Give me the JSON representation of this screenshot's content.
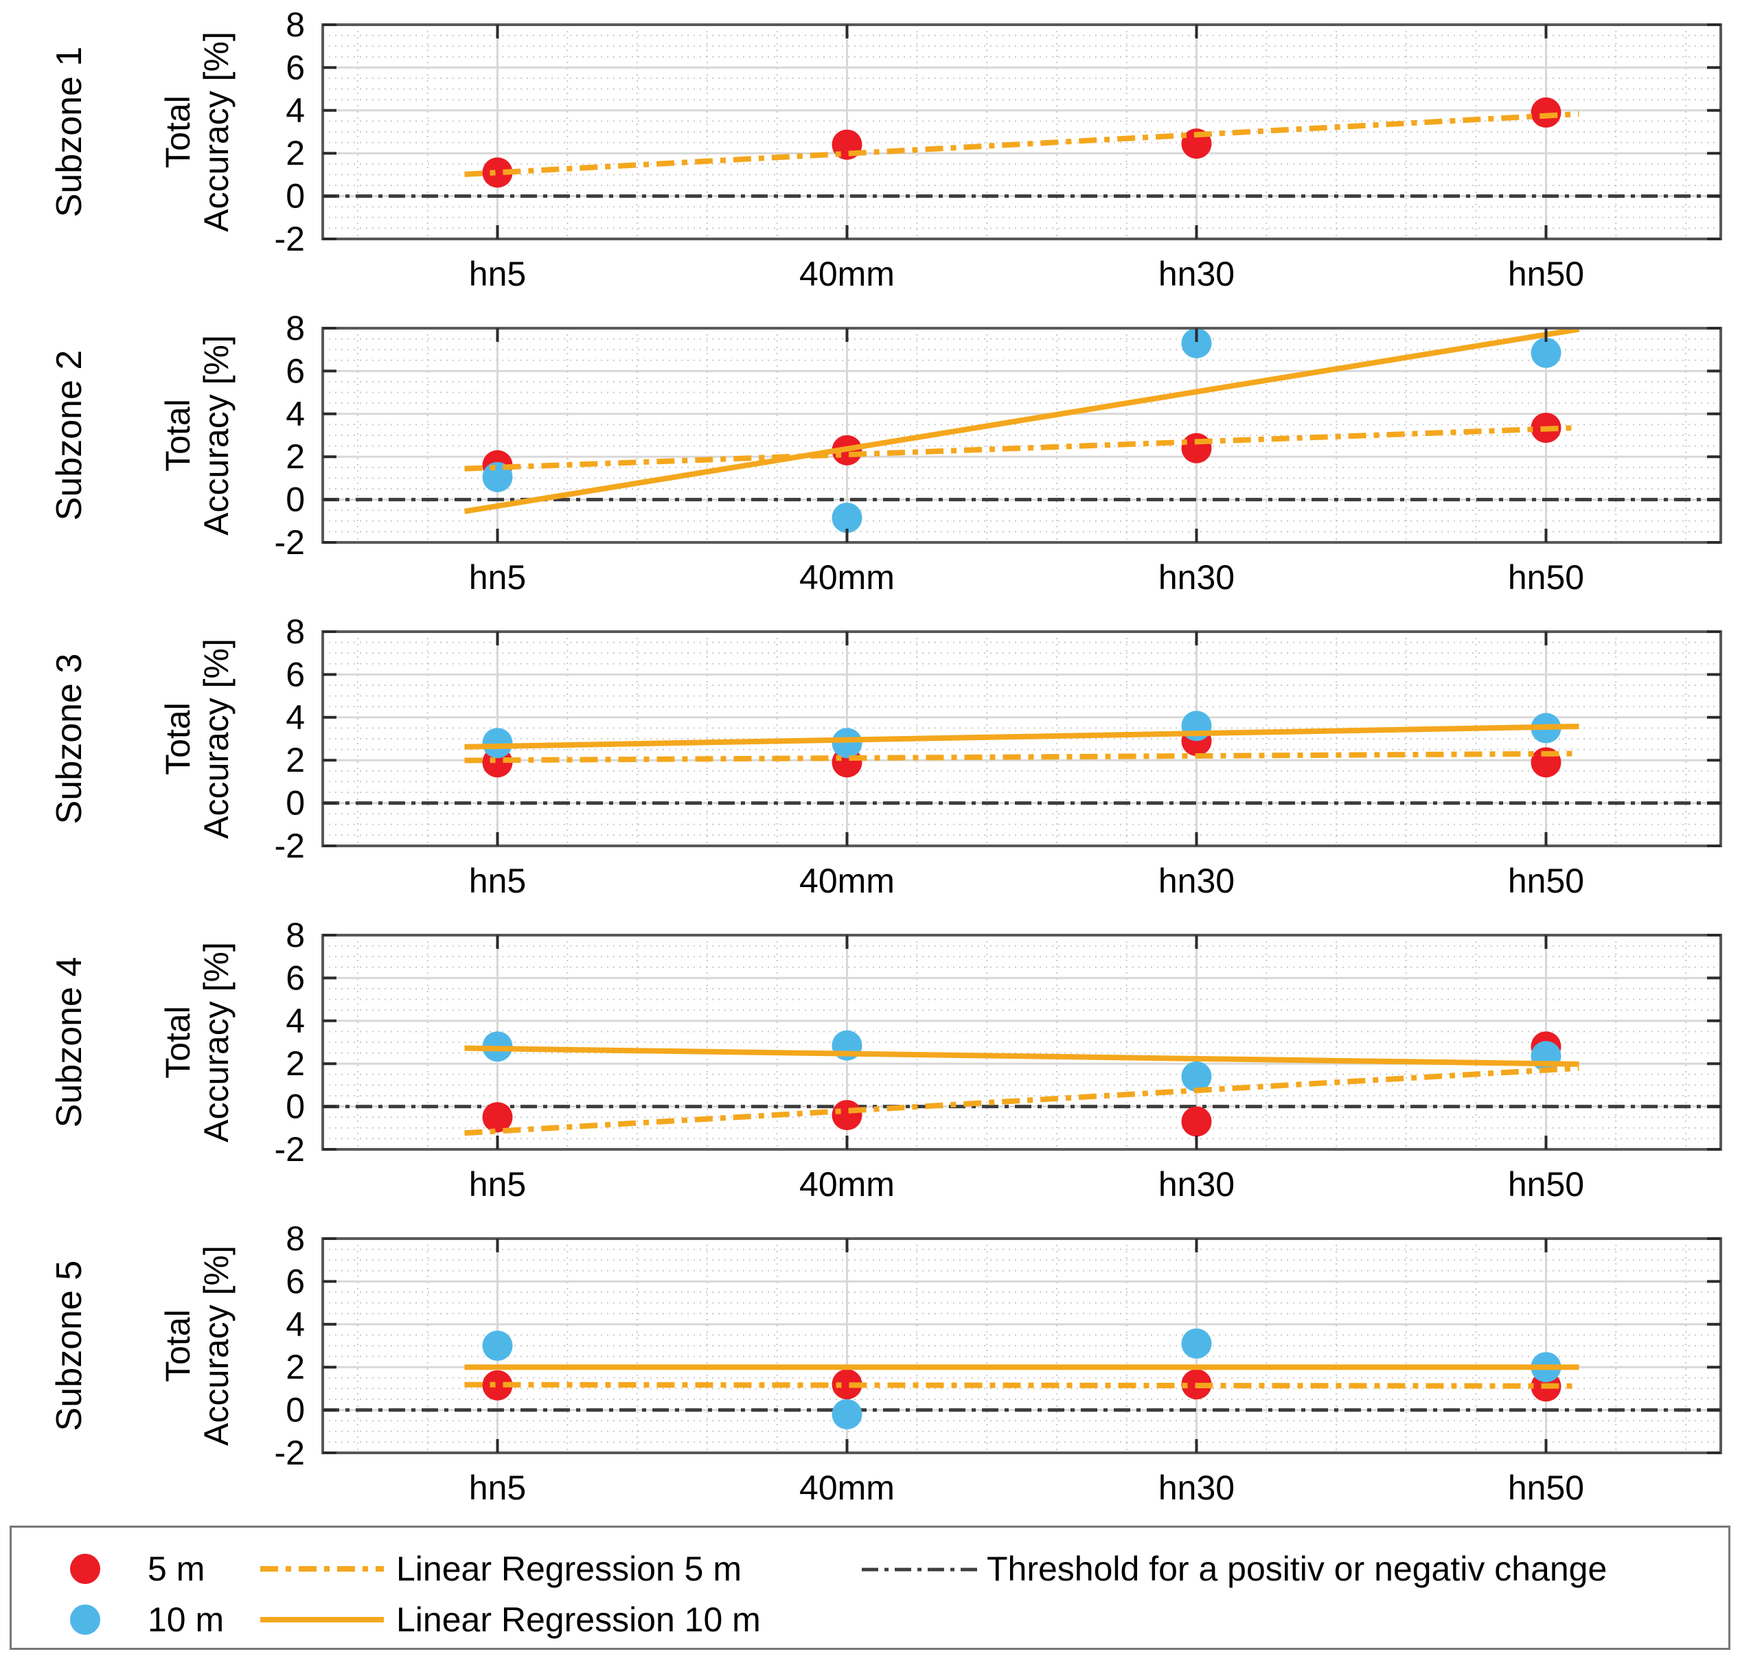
{
  "figure": {
    "ylabel_line1": "Total",
    "ylabel_line2": "Accuracy [%]",
    "ylabel": "Total Accuracy [%]",
    "ylim": [
      -2,
      8
    ],
    "yticks": [
      8,
      6,
      4,
      2,
      0,
      -2
    ],
    "ytick_labels": [
      "8",
      "6",
      "4",
      "2",
      "0",
      "-2"
    ],
    "categories": [
      "hn5",
      "40mm",
      "hn30",
      "hn50"
    ]
  },
  "colors": {
    "red": "#eb1c24",
    "blue": "#4fb7e8",
    "orange": "#f4a71d",
    "threshold": "#3d3d3d"
  },
  "chart_data": [
    {
      "type": "scatter",
      "title": "Subzone 1",
      "ylabel": "Total Accuracy [%]",
      "categories": [
        "hn5",
        "40mm",
        "hn30",
        "hn50"
      ],
      "ylim": [
        -2,
        8
      ],
      "grid": true,
      "threshold_y": 0,
      "series": [
        {
          "key": "5m",
          "name": "5 m",
          "kind": "points",
          "color": "red",
          "values": [
            1.1,
            2.4,
            2.45,
            3.9
          ]
        },
        {
          "key": "lr5",
          "name": "Linear Regression 5 m",
          "kind": "regression",
          "style": "dashdot",
          "color": "orange",
          "endpoints": [
            1.1,
            3.75
          ]
        }
      ]
    },
    {
      "type": "scatter",
      "title": "Subzone 2",
      "ylabel": "Total Accuracy [%]",
      "categories": [
        "hn5",
        "40mm",
        "hn30",
        "hn50"
      ],
      "ylim": [
        -2,
        8
      ],
      "grid": true,
      "threshold_y": 0,
      "series": [
        {
          "key": "5m",
          "name": "5 m",
          "kind": "points",
          "color": "red",
          "values": [
            1.6,
            2.3,
            2.4,
            3.35
          ]
        },
        {
          "key": "10m",
          "name": "10 m",
          "kind": "points",
          "color": "blue",
          "values": [
            1.05,
            -0.85,
            7.3,
            6.85
          ]
        },
        {
          "key": "lr5",
          "name": "Linear Regression 5 m",
          "kind": "regression",
          "style": "dashdot",
          "color": "orange",
          "endpoints": [
            1.5,
            3.3
          ]
        },
        {
          "key": "lr10",
          "name": "Linear Regression 10 m",
          "kind": "regression",
          "style": "solid",
          "color": "orange",
          "endpoints": [
            -0.3,
            7.7
          ]
        }
      ]
    },
    {
      "type": "scatter",
      "title": "Subzone 3",
      "ylabel": "Total Accuracy [%]",
      "categories": [
        "hn5",
        "40mm",
        "hn30",
        "hn50"
      ],
      "ylim": [
        -2,
        8
      ],
      "grid": true,
      "threshold_y": 0,
      "series": [
        {
          "key": "5m",
          "name": "5 m",
          "kind": "points",
          "color": "red",
          "values": [
            1.9,
            1.9,
            2.9,
            1.9
          ]
        },
        {
          "key": "10m",
          "name": "10 m",
          "kind": "points",
          "color": "blue",
          "values": [
            2.8,
            2.8,
            3.6,
            3.5
          ]
        },
        {
          "key": "lr5",
          "name": "Linear Regression 5 m",
          "kind": "regression",
          "style": "dashdot",
          "color": "orange",
          "endpoints": [
            2.0,
            2.3
          ]
        },
        {
          "key": "lr10",
          "name": "Linear Regression 10 m",
          "kind": "regression",
          "style": "solid",
          "color": "orange",
          "endpoints": [
            2.65,
            3.55
          ]
        }
      ]
    },
    {
      "type": "scatter",
      "title": "Subzone 4",
      "ylabel": "Total Accuracy [%]",
      "categories": [
        "hn5",
        "40mm",
        "hn30",
        "hn50"
      ],
      "ylim": [
        -2,
        8
      ],
      "grid": true,
      "threshold_y": 0,
      "series": [
        {
          "key": "5m",
          "name": "5 m",
          "kind": "points",
          "color": "red",
          "values": [
            -0.5,
            -0.4,
            -0.7,
            2.8
          ]
        },
        {
          "key": "10m",
          "name": "10 m",
          "kind": "points",
          "color": "blue",
          "values": [
            2.8,
            2.85,
            1.4,
            2.35
          ]
        },
        {
          "key": "lr5",
          "name": "Linear Regression 5 m",
          "kind": "regression",
          "style": "dashdot",
          "color": "orange",
          "endpoints": [
            -1.15,
            1.7
          ]
        },
        {
          "key": "lr10",
          "name": "Linear Regression 10 m",
          "kind": "regression",
          "style": "solid",
          "color": "orange",
          "endpoints": [
            2.7,
            2.0
          ]
        }
      ]
    },
    {
      "type": "scatter",
      "title": "Subzone 5",
      "ylabel": "Total Accuracy [%]",
      "categories": [
        "hn5",
        "40mm",
        "hn30",
        "hn50"
      ],
      "ylim": [
        -2,
        8
      ],
      "grid": true,
      "threshold_y": 0,
      "series": [
        {
          "key": "5m",
          "name": "5 m",
          "kind": "points",
          "color": "red",
          "values": [
            1.15,
            1.2,
            1.2,
            1.1
          ]
        },
        {
          "key": "10m",
          "name": "10 m",
          "kind": "points",
          "color": "blue",
          "values": [
            3.0,
            -0.2,
            3.1,
            2.0
          ]
        },
        {
          "key": "lr5",
          "name": "Linear Regression 5 m",
          "kind": "regression",
          "style": "dashdot",
          "color": "orange",
          "endpoints": [
            1.18,
            1.12
          ]
        },
        {
          "key": "lr10",
          "name": "Linear Regression 10 m",
          "kind": "regression",
          "style": "solid",
          "color": "orange",
          "endpoints": [
            2.0,
            2.0
          ]
        }
      ]
    }
  ],
  "legend": {
    "items": [
      {
        "key": "5m",
        "label": "5 m",
        "marker": "dot",
        "color": "red"
      },
      {
        "key": "10m",
        "label": "10 m",
        "marker": "dot",
        "color": "blue"
      },
      {
        "key": "lr5",
        "label": "Linear Regression 5 m",
        "marker": "dashdot-line",
        "color": "orange"
      },
      {
        "key": "lr10",
        "label": "Linear Regression 10 m",
        "marker": "solid-line",
        "color": "orange"
      },
      {
        "key": "threshold",
        "label": "Threshold for a positiv or negativ change",
        "marker": "dashdot-line",
        "color": "threshold"
      }
    ]
  }
}
